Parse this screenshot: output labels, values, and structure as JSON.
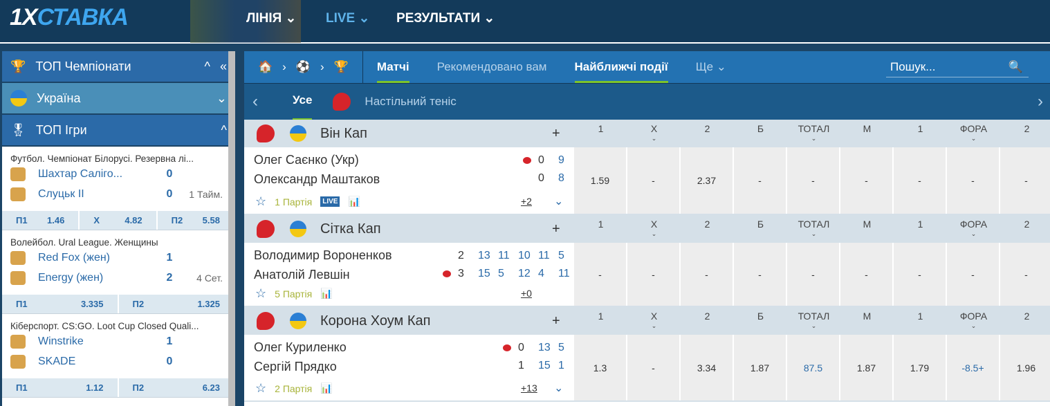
{
  "header": {
    "logo_a": "1X",
    "logo_b": "СТАВКА",
    "nav": [
      {
        "label": "ЛІНІЯ ⌄"
      },
      {
        "label": "LIVE ⌄"
      },
      {
        "label": "РЕЗУЛЬТАТИ ⌄"
      }
    ],
    "colors": {
      "bg": "#133a5a",
      "live": "#5fb3ea"
    }
  },
  "sidebar": {
    "sections": [
      {
        "label": "ТОП Чемпіонати",
        "color": "#2b6aa8"
      },
      {
        "label": "Україна",
        "color": "#4a8fb8"
      },
      {
        "label": "ТОП Ігри",
        "color": "#2b6aa8"
      }
    ],
    "cards": [
      {
        "league": "Футбол. Чемпіонат Білорусі. Резервна лі...",
        "teams": [
          {
            "name": "Шахтар Саліго...",
            "score": "0"
          },
          {
            "name": "Слуцьк II",
            "score": "0"
          }
        ],
        "status": "1 Тайм.",
        "odds": [
          [
            "П1",
            "1.46"
          ],
          [
            "Х",
            "4.82"
          ],
          [
            "П2",
            "5.58"
          ]
        ]
      },
      {
        "league": "Волейбол. Ural League. Женщины",
        "teams": [
          {
            "name": "Red Fox (жен)",
            "score": "1"
          },
          {
            "name": "Energy (жен)",
            "score": "2"
          }
        ],
        "status": "4 Сет.",
        "odds": [
          [
            "П1",
            "3.335"
          ],
          [
            "П2",
            "1.325"
          ]
        ]
      },
      {
        "league": "Кіберспорт. CS:GO. Loot Cup Closed Quali...",
        "teams": [
          {
            "name": "Winstrike",
            "score": "1"
          },
          {
            "name": "SKADE",
            "score": "0"
          }
        ],
        "status": "",
        "odds": [
          [
            "П1",
            "1.12"
          ],
          [
            "П2",
            "6.23"
          ]
        ]
      }
    ]
  },
  "main": {
    "tabs": [
      {
        "label": "Матчі"
      },
      {
        "label": "Рекомендовано вам"
      },
      {
        "label": "Найближчі події"
      },
      {
        "label": "Ще ⌄"
      }
    ],
    "search_placeholder": "Пошук...",
    "subtabs": [
      {
        "label": "Усе"
      },
      {
        "label": "Настільний теніс"
      }
    ],
    "columns": [
      "1",
      "X",
      "2",
      "Б",
      "ТОТАЛ",
      "М",
      "1",
      "ФОРА",
      "2"
    ],
    "groups": [
      {
        "title": "Він Кап",
        "p1": "Олег Саєнко (Укр)",
        "p2": "Олександр Маштаков",
        "s1": [
          "0",
          "9"
        ],
        "s2": [
          "0",
          "8"
        ],
        "serve": 1,
        "period": "1 Партія",
        "live": "LIVE",
        "more": "+2",
        "odds": [
          "1.59",
          "-",
          "2.37",
          "-",
          "-",
          "-",
          "-",
          "-",
          "-"
        ]
      },
      {
        "title": "Сітка Кап",
        "p1": "Володимир Вороненков",
        "p2": "Анатолій Левшін",
        "s1": [
          "2",
          "13",
          "11",
          "10",
          "11",
          "5"
        ],
        "s2": [
          "3",
          "15",
          "5",
          "12",
          "4",
          "11"
        ],
        "serve": 2,
        "period": "5 Партія",
        "live": "",
        "more": "+0",
        "odds": [
          "-",
          "-",
          "-",
          "-",
          "-",
          "-",
          "-",
          "-",
          "-"
        ]
      },
      {
        "title": "Корона Хоум Кап",
        "p1": "Олег Куриленко",
        "p2": "Сергій Прядко",
        "s1": [
          "0",
          "13",
          "5"
        ],
        "s2": [
          "1",
          "15",
          "1"
        ],
        "serve": 1,
        "period": "2 Партія",
        "live": "",
        "more": "+13",
        "odds": [
          "1.3",
          "-",
          "3.34",
          "1.87",
          "87.5",
          "1.87",
          "1.79",
          "-8.5+",
          "1.96"
        ]
      }
    ]
  }
}
